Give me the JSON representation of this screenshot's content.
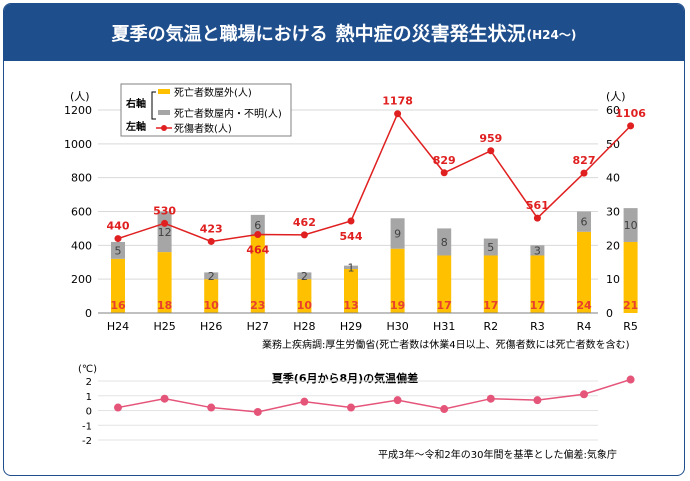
{
  "header": {
    "title_part1": "夏季の気温と職場における",
    "title_part2": "熱中症の災害発生状況",
    "title_part3": "(H24〜)"
  },
  "colors": {
    "frame": "#1f4e8c",
    "outside": "#ffc000",
    "inside": "#a6a6a6",
    "casualties": "#e02020",
    "temperature": "#e5557a"
  },
  "chart_data": [
    {
      "type": "bar",
      "categories": [
        "H24",
        "H25",
        "H26",
        "H27",
        "H28",
        "H29",
        "H30",
        "H31",
        "R2",
        "R3",
        "R4",
        "R5"
      ],
      "left_axis": {
        "unit": "(人)",
        "ylim": [
          0,
          1200
        ],
        "ticks": [
          0,
          200,
          400,
          600,
          800,
          1000,
          1200
        ]
      },
      "right_axis": {
        "unit": "(人)",
        "ylim": [
          0,
          60
        ],
        "ticks": [
          0,
          10,
          20,
          30,
          40,
          50,
          60
        ]
      },
      "legend": {
        "right_label": "右軸",
        "left_label": "左軸",
        "placement": "top-left"
      },
      "series": [
        {
          "name": "死亡者数屋外(人)",
          "axis": "right",
          "kind": "bar-stacked",
          "values": [
            16,
            18,
            10,
            23,
            10,
            13,
            19,
            17,
            17,
            17,
            24,
            21
          ]
        },
        {
          "name": "死亡者数屋内・不明(人)",
          "axis": "right",
          "kind": "bar-stacked",
          "values": [
            5,
            12,
            2,
            6,
            2,
            1,
            9,
            8,
            5,
            3,
            6,
            10
          ]
        },
        {
          "name": "死傷者数(人)",
          "axis": "left",
          "kind": "line",
          "values": [
            440,
            530,
            423,
            464,
            462,
            544,
            1178,
            829,
            959,
            561,
            827,
            1106
          ]
        }
      ],
      "source_note": "業務上疾病調:厚生労働省(死亡者数は休業4日以上、死傷者数には死亡者数を含む)"
    },
    {
      "type": "line",
      "title": "夏季(6月から8月)の気温偏差",
      "y_unit": "(℃)",
      "ylim": [
        -2,
        2
      ],
      "ticks": [
        -2,
        -1,
        0,
        1,
        2
      ],
      "x": [
        "H24",
        "H25",
        "H26",
        "H27",
        "H28",
        "H29",
        "H30",
        "H31",
        "R2",
        "R3",
        "R4",
        "R5"
      ],
      "values": [
        0.2,
        0.8,
        0.2,
        -0.1,
        0.6,
        0.2,
        0.7,
        0.1,
        0.8,
        0.7,
        1.1,
        2.1
      ],
      "source_note": "平成3年〜令和2年の30年間を基準とした偏差:気象庁"
    }
  ]
}
